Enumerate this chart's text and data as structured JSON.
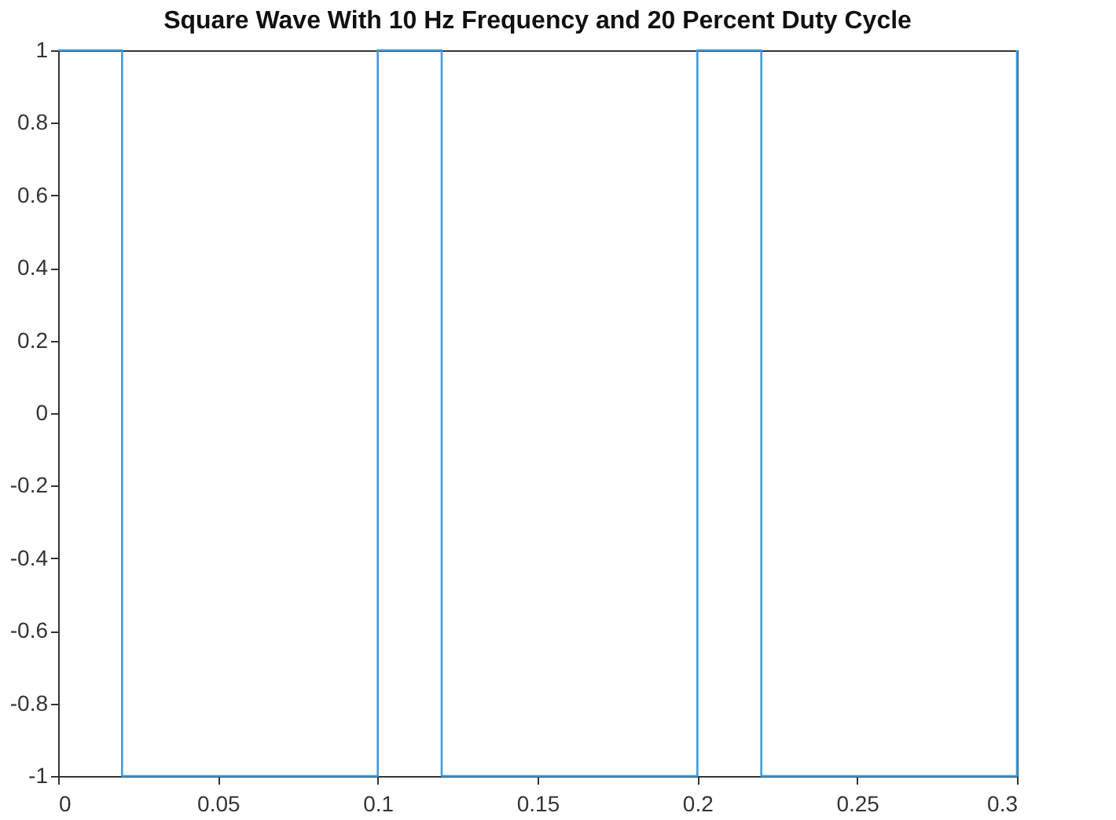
{
  "chart_data": {
    "type": "line",
    "title": "Square Wave With 10 Hz Frequency and 20 Percent Duty Cycle",
    "series": [
      {
        "color": "#3d9be0",
        "x": [
          0,
          0.02,
          0.02,
          0.1,
          0.1,
          0.12,
          0.12,
          0.2,
          0.2,
          0.22,
          0.22,
          0.3,
          0.3
        ],
        "values": [
          1,
          1,
          -1,
          -1,
          1,
          1,
          -1,
          -1,
          1,
          1,
          -1,
          -1,
          1
        ]
      }
    ],
    "xlim": [
      0,
      0.3
    ],
    "xticks": [
      0,
      0.05,
      0.1,
      0.15,
      0.2,
      0.25,
      0.3
    ],
    "ylim": [
      -1,
      1
    ],
    "yticks": [
      -1,
      -0.8,
      -0.6,
      -0.4,
      -0.2,
      0,
      0.2,
      0.4,
      0.6,
      0.8,
      1
    ],
    "grid": false,
    "line_style": "solid",
    "marker": "none"
  }
}
